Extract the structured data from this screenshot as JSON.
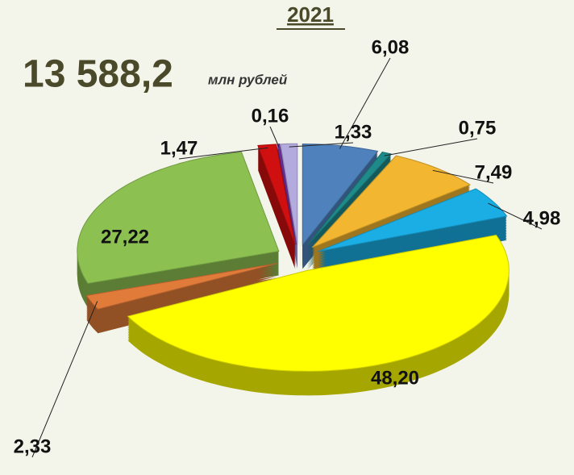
{
  "chart_data": {
    "type": "pie",
    "title": "2021",
    "total": "13 588,2",
    "unit": "млн рублей",
    "values": [
      6.08,
      0.75,
      7.49,
      4.98,
      48.2,
      2.33,
      27.22,
      1.47,
      0.16,
      1.33
    ],
    "value_labels": [
      "6,08",
      "0,75",
      "7,49",
      "4,98",
      "48,20",
      "2,33",
      "27,22",
      "1,47",
      "0,16",
      "1,33"
    ],
    "colors": [
      "#4f81bd",
      "#1f8a8a",
      "#f2b630",
      "#1aaee5",
      "#ffff00",
      "#e07b39",
      "#8cc152",
      "#d01010",
      "#7030a0",
      "#b3aade"
    ]
  }
}
